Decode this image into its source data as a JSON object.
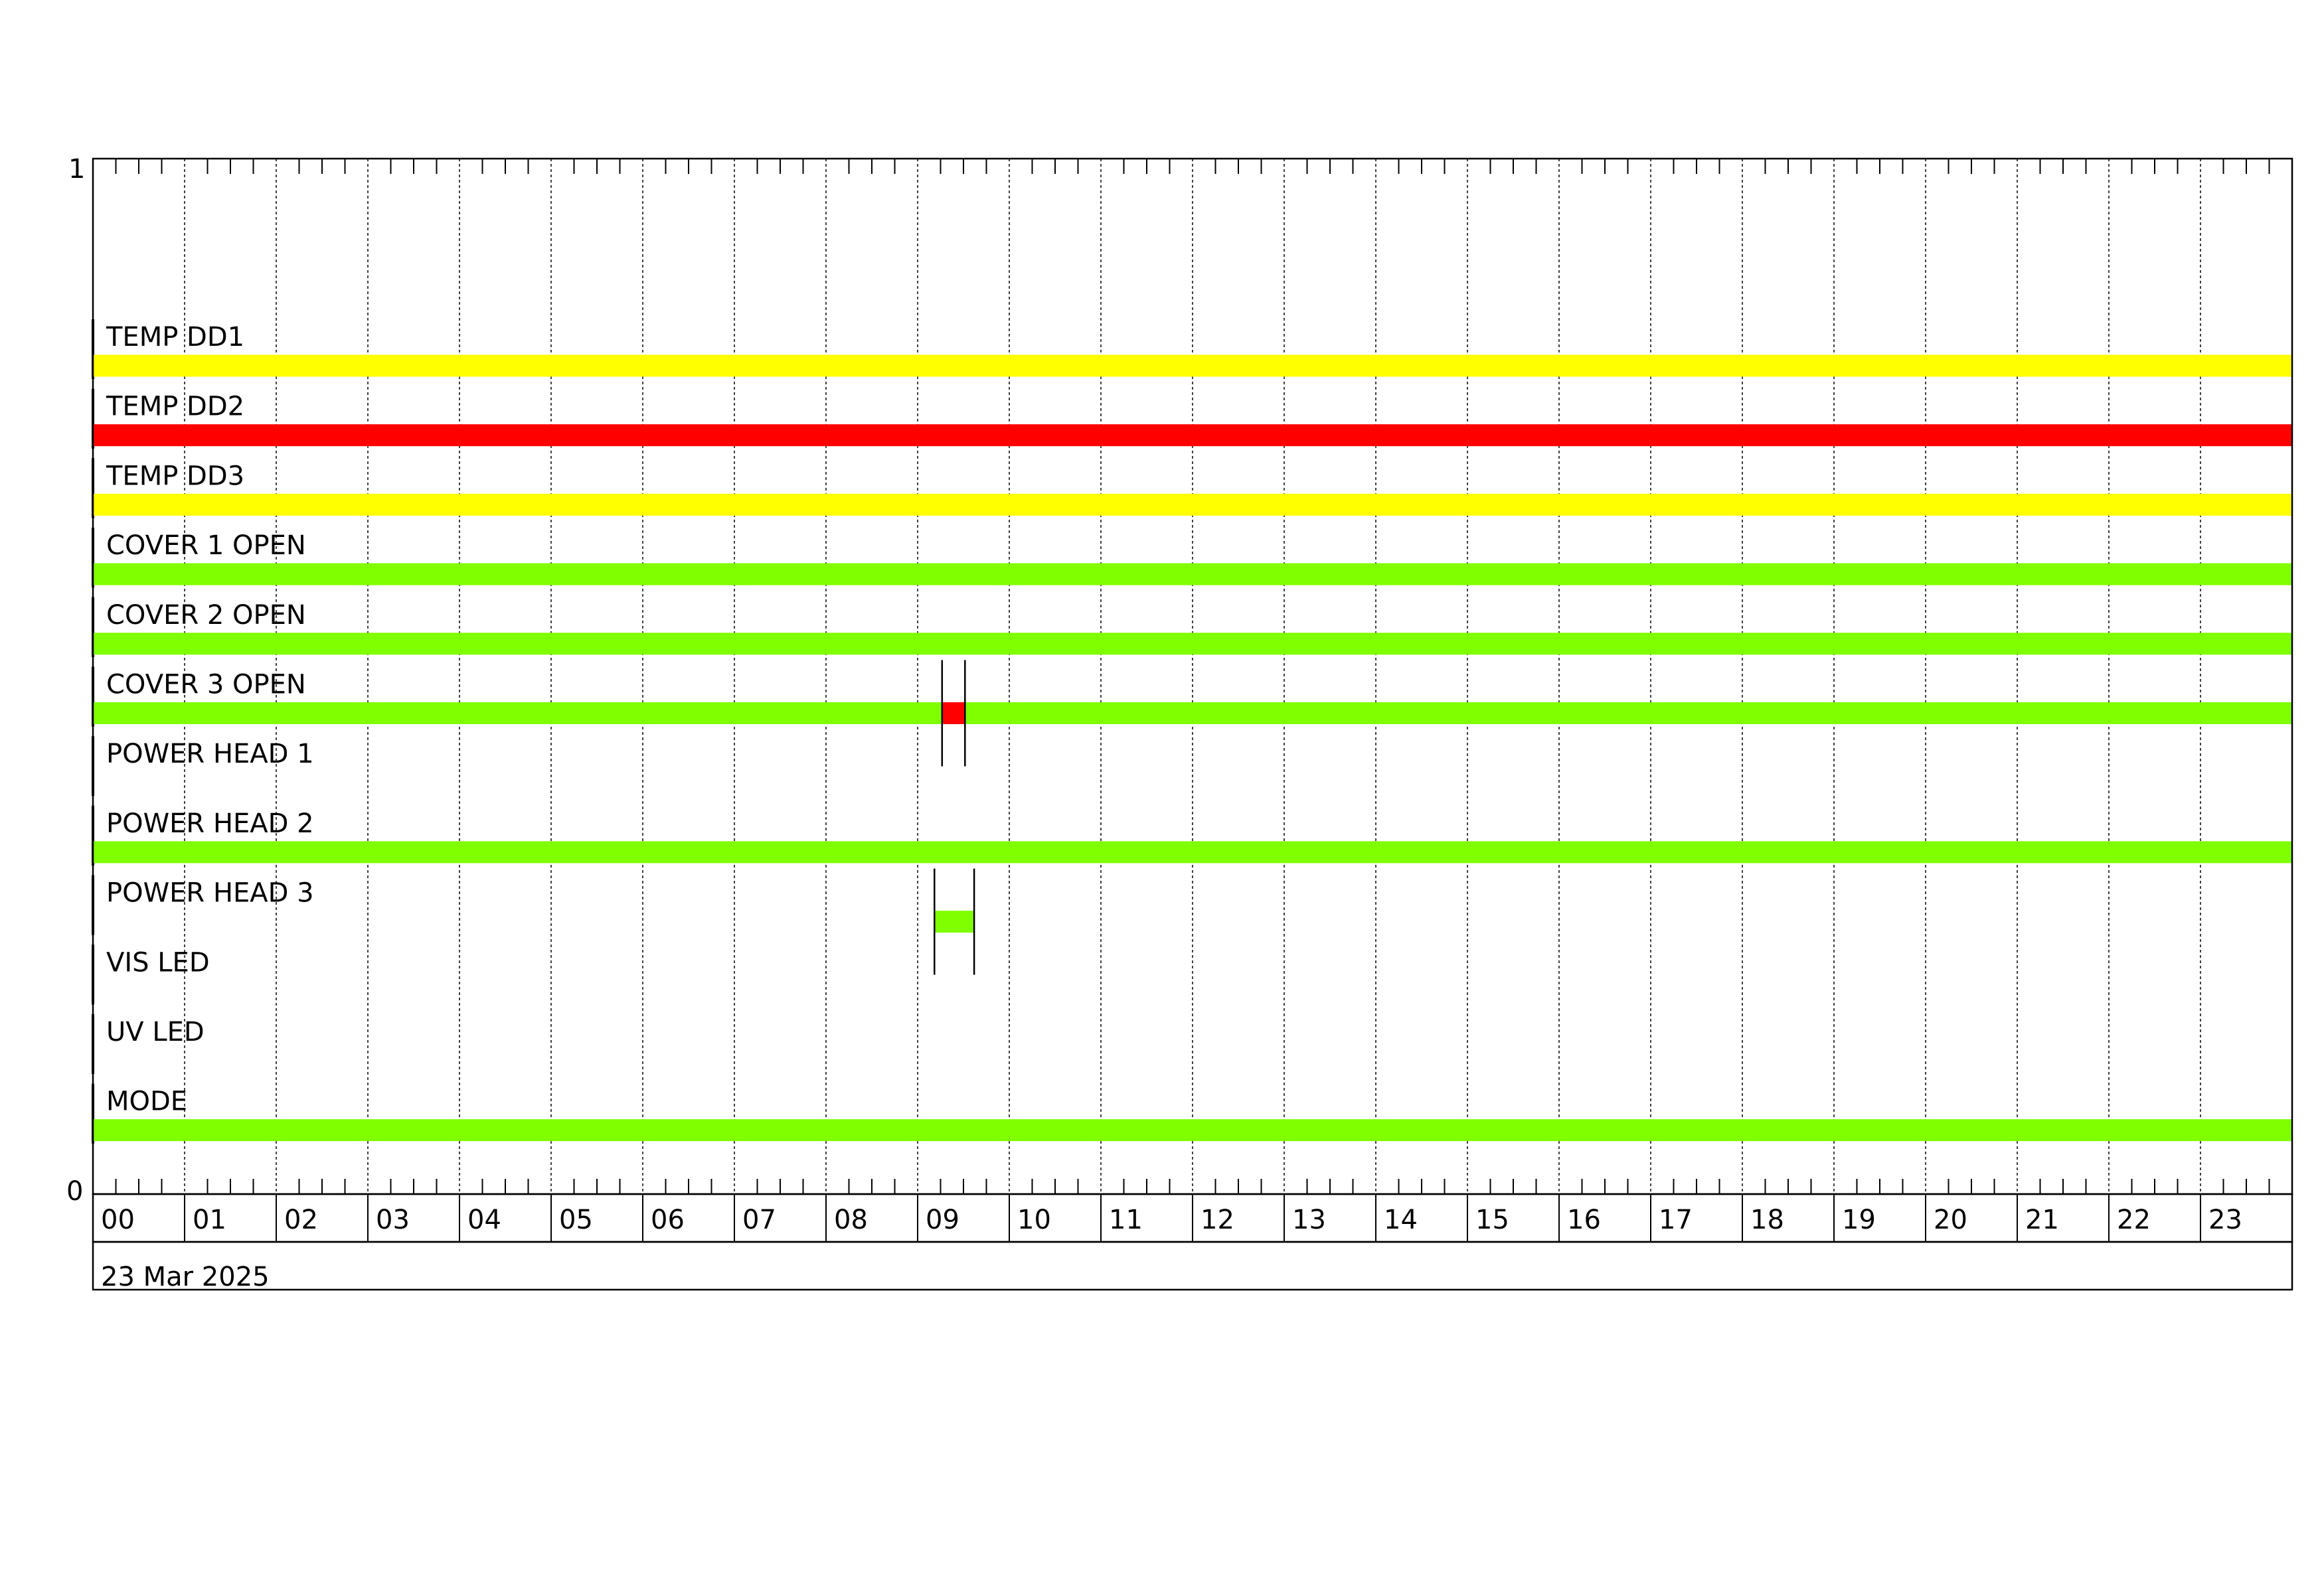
{
  "chart_data": {
    "type": "bar",
    "orientation": "horizontal-timeline",
    "date_label": "23 Mar 2025",
    "y_tick_labels": [
      "1",
      "0"
    ],
    "x_tick_labels": [
      "00",
      "01",
      "02",
      "03",
      "04",
      "05",
      "06",
      "07",
      "08",
      "09",
      "10",
      "11",
      "12",
      "13",
      "14",
      "15",
      "16",
      "17",
      "18",
      "19",
      "20",
      "21",
      "22",
      "23"
    ],
    "xlim": [
      "00:00",
      "24:00"
    ],
    "grid": true,
    "colors": {
      "yellow": "#ffff00",
      "red": "#ff0000",
      "green": "#80ff00"
    },
    "rows": [
      {
        "name": "TEMP DD1",
        "segments": [
          {
            "start": "00:00",
            "end": "24:00",
            "color": "#ffff00"
          }
        ]
      },
      {
        "name": "TEMP DD2",
        "segments": [
          {
            "start": "00:00",
            "end": "24:00",
            "color": "#ff0000"
          }
        ]
      },
      {
        "name": "TEMP DD3",
        "segments": [
          {
            "start": "00:00",
            "end": "24:00",
            "color": "#ffff00"
          }
        ]
      },
      {
        "name": "COVER 1 OPEN",
        "segments": [
          {
            "start": "00:00",
            "end": "24:00",
            "color": "#80ff00"
          }
        ]
      },
      {
        "name": "COVER 2 OPEN",
        "segments": [
          {
            "start": "00:00",
            "end": "24:00",
            "color": "#80ff00"
          }
        ]
      },
      {
        "name": "COVER 3 OPEN",
        "segments": [
          {
            "start": "00:00",
            "end": "09:16",
            "color": "#80ff00"
          },
          {
            "start": "09:16",
            "end": "09:31",
            "color": "#ff0000"
          },
          {
            "start": "09:31",
            "end": "24:00",
            "color": "#80ff00"
          }
        ],
        "markers": [
          "09:16",
          "09:31"
        ]
      },
      {
        "name": "POWER HEAD 1",
        "segments": []
      },
      {
        "name": "POWER HEAD 2",
        "segments": [
          {
            "start": "00:00",
            "end": "24:00",
            "color": "#80ff00"
          }
        ]
      },
      {
        "name": "POWER HEAD 3",
        "segments": [
          {
            "start": "09:11",
            "end": "09:37",
            "color": "#80ff00"
          }
        ],
        "markers": [
          "09:11",
          "09:37"
        ]
      },
      {
        "name": "VIS LED",
        "segments": []
      },
      {
        "name": "UV LED",
        "segments": []
      },
      {
        "name": "MODE",
        "segments": [
          {
            "start": "00:00",
            "end": "24:00",
            "color": "#80ff00"
          }
        ]
      }
    ]
  }
}
